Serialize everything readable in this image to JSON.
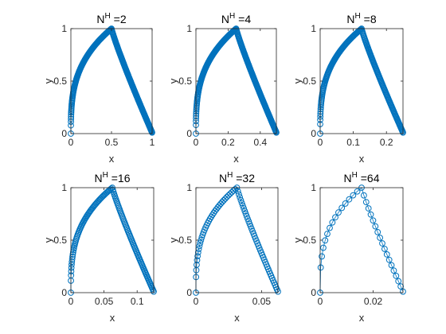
{
  "figure": {
    "colors": {
      "series": "#0072BD",
      "axes": "#262626"
    }
  },
  "chart_data": [
    {
      "type": "scatter",
      "title_base": "N",
      "title_sup": "H",
      "title_rest": " =2",
      "xlabel": "x",
      "ylabel": "y",
      "xlim": [
        0,
        1
      ],
      "ylim": [
        0,
        1
      ],
      "xticks": [
        0,
        0.5,
        1
      ],
      "xtick_labels": [
        "0",
        "0.5",
        "1"
      ],
      "yticks": [
        0,
        0.5,
        1
      ],
      "ytick_labels": [
        "0",
        "0.5",
        "1"
      ],
      "shape": {
        "n": 260,
        "alpha": 0.5
      },
      "series": {
        "marker": "circle",
        "connected": true
      }
    },
    {
      "type": "scatter",
      "title_base": "N",
      "title_sup": "H",
      "title_rest": " =4",
      "xlabel": "x",
      "ylabel": "y",
      "xlim": [
        0,
        0.5
      ],
      "ylim": [
        0,
        1
      ],
      "xticks": [
        0,
        0.2,
        0.4
      ],
      "xtick_labels": [
        "0",
        "0.2",
        "0.4"
      ],
      "yticks": [
        0,
        0.5,
        1
      ],
      "ytick_labels": [
        "0",
        "0.5",
        "1"
      ],
      "shape": {
        "n": 240,
        "alpha": 0.25
      },
      "series": {
        "marker": "circle",
        "connected": true
      }
    },
    {
      "type": "scatter",
      "title_base": "N",
      "title_sup": "H",
      "title_rest": " =8",
      "xlabel": "x",
      "ylabel": "y",
      "xlim": [
        0,
        0.25
      ],
      "ylim": [
        0,
        1
      ],
      "xticks": [
        0,
        0.1,
        0.2
      ],
      "xtick_labels": [
        "0",
        "0.1",
        "0.2"
      ],
      "yticks": [
        0,
        0.5,
        1
      ],
      "ytick_labels": [
        "0",
        "0.5",
        "1"
      ],
      "shape": {
        "n": 200,
        "alpha": 0.125
      },
      "series": {
        "marker": "circle",
        "connected": true
      }
    },
    {
      "type": "scatter",
      "title_base": "N",
      "title_sup": "H",
      "title_rest": " =16",
      "xlabel": "x",
      "ylabel": "y",
      "xlim": [
        0,
        0.125
      ],
      "ylim": [
        0,
        1
      ],
      "xticks": [
        0,
        0.05,
        0.1
      ],
      "xtick_labels": [
        "0",
        "0.05",
        "0.1"
      ],
      "yticks": [
        0,
        0.5,
        1
      ],
      "ytick_labels": [
        "0",
        "0.5",
        "1"
      ],
      "shape": {
        "n": 130,
        "alpha": 0.0625
      },
      "series": {
        "marker": "circle",
        "connected": true
      }
    },
    {
      "type": "scatter",
      "title_base": "N",
      "title_sup": "H",
      "title_rest": " =32",
      "xlabel": "x",
      "ylabel": "y",
      "xlim": [
        0,
        0.0625
      ],
      "ylim": [
        0,
        1
      ],
      "xticks": [
        0,
        0.05
      ],
      "xtick_labels": [
        "0",
        "0.05"
      ],
      "yticks": [
        0,
        0.5,
        1
      ],
      "ytick_labels": [
        "0",
        "0.5",
        "1"
      ],
      "shape": {
        "n": 80,
        "alpha": 0.03125
      },
      "series": {
        "marker": "circle",
        "connected": true
      }
    },
    {
      "type": "scatter",
      "title_base": "N",
      "title_sup": "H",
      "title_rest": " =64",
      "xlabel": "x",
      "ylabel": "y",
      "xlim": [
        0,
        0.03125
      ],
      "ylim": [
        0,
        1
      ],
      "xticks": [
        0,
        0.02
      ],
      "xtick_labels": [
        "0",
        "0.02"
      ],
      "yticks": [
        0,
        0.5,
        1
      ],
      "ytick_labels": [
        "0",
        "0.5",
        "1"
      ],
      "shape": {
        "n": 34,
        "alpha": 0.015625
      },
      "series": {
        "marker": "circle",
        "connected": true
      }
    }
  ]
}
